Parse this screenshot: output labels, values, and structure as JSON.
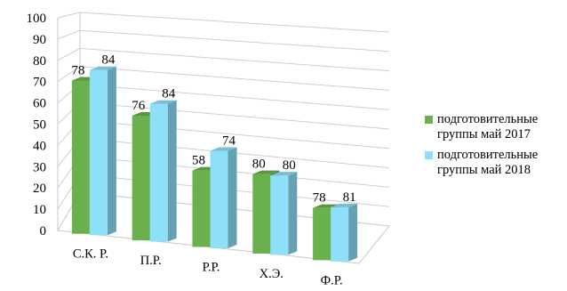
{
  "chart_data": {
    "type": "bar",
    "title": "",
    "xlabel": "",
    "ylabel": "",
    "ylim": [
      0,
      100
    ],
    "ytick_step": 10,
    "grid": true,
    "legend_position": "right",
    "categories": [
      "С.К. Р.",
      "П.Р.",
      "Р.Р.",
      "Х.Э.",
      "Ф.Р."
    ],
    "series": [
      {
        "name": "подготовительные группы май 2017",
        "color": "#6ab04c",
        "values": [
          78,
          76,
          58,
          80,
          78
        ]
      },
      {
        "name": "подготовительные группы май 2018",
        "color": "#8ee0f8",
        "values": [
          84,
          84,
          74,
          80,
          81
        ]
      }
    ]
  },
  "legend": {
    "items": [
      {
        "label": "подготовительные группы май 2017",
        "color": "#6ab04c"
      },
      {
        "label": "подготовительные группы май 2018",
        "color": "#8ee0f8"
      }
    ]
  }
}
